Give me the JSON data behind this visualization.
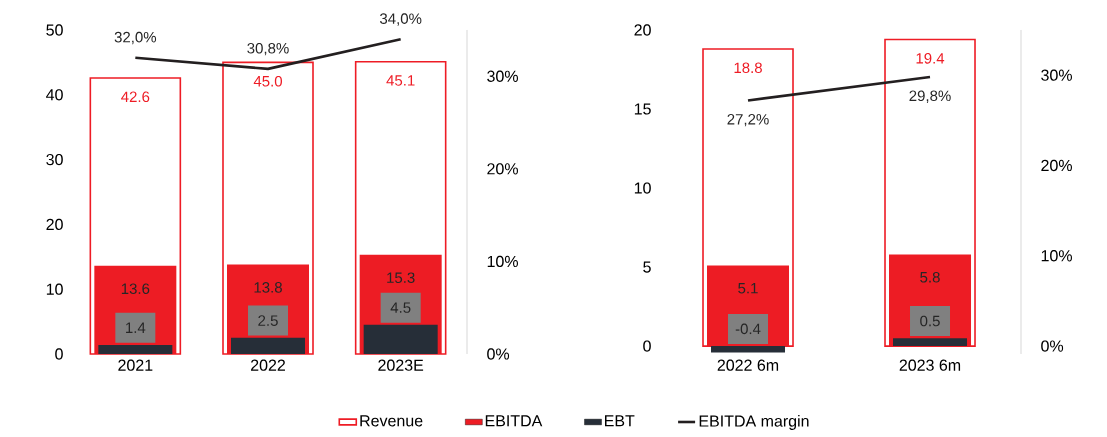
{
  "chart_data": [
    {
      "type": "bar",
      "categories": [
        "2021",
        "2022",
        "2023E"
      ],
      "series": [
        {
          "name": "Revenue",
          "color": "#ee1c25",
          "values": [
            42.6,
            45.0,
            45.1
          ],
          "value_labels": [
            "42.6",
            "45.0",
            "45.1"
          ]
        },
        {
          "name": "EBITDA",
          "color": "#ed1c24",
          "values": [
            13.6,
            13.8,
            15.3
          ],
          "value_labels": [
            "13.6",
            "13.8",
            "15.3"
          ]
        },
        {
          "name": "EBT",
          "color": "#262e38",
          "values": [
            1.4,
            2.5,
            4.5
          ],
          "value_labels": [
            "1.4",
            "2.5",
            "4.5"
          ]
        },
        {
          "name": "EBITDA margin",
          "type": "line",
          "axis": "y2",
          "color": "#231f20",
          "values": [
            32.0,
            30.8,
            34.0
          ],
          "value_labels": [
            "32,0%",
            "30,8%",
            "34,0%"
          ]
        }
      ],
      "ylim": [
        0,
        50
      ],
      "yticks": [
        0,
        10,
        20,
        30,
        40,
        50
      ],
      "y2lim": [
        0,
        35
      ],
      "y2ticks": [
        {
          "value": 0,
          "label": "0%"
        },
        {
          "value": 10,
          "label": "10%"
        },
        {
          "value": 20,
          "label": "20%"
        },
        {
          "value": 30,
          "label": "30%"
        }
      ],
      "legend": "bottom"
    },
    {
      "type": "bar",
      "categories": [
        "2022 6m",
        "2023 6m"
      ],
      "series": [
        {
          "color": "#ee1c25",
          "values": [
            18.8,
            19.4
          ],
          "value_labels": [
            "18.8",
            "19.4"
          ]
        },
        {
          "color": "#ed1c24",
          "values": [
            5.1,
            5.8
          ],
          "value_labels": [
            "5.1",
            "5.8"
          ]
        },
        {
          "color": "#262e38",
          "values": [
            -0.4,
            0.5
          ],
          "value_labels": [
            "-0.4",
            "0.5"
          ]
        },
        {
          "type": "line",
          "axis": "y2",
          "color": "#231f20",
          "values": [
            27.2,
            29.8
          ],
          "value_labels": [
            "27,2%",
            "29,8%"
          ]
        }
      ],
      "ylim": [
        -0.5,
        20
      ],
      "yticks": [
        0,
        5,
        10,
        15,
        20
      ],
      "y2lim": [
        -0.875,
        35
      ],
      "y2ticks": [
        {
          "value": 0,
          "label": "0%"
        },
        {
          "value": 10,
          "label": "10%"
        },
        {
          "value": 20,
          "label": "20%"
        },
        {
          "value": 30,
          "label": "30%"
        }
      ]
    }
  ]
}
